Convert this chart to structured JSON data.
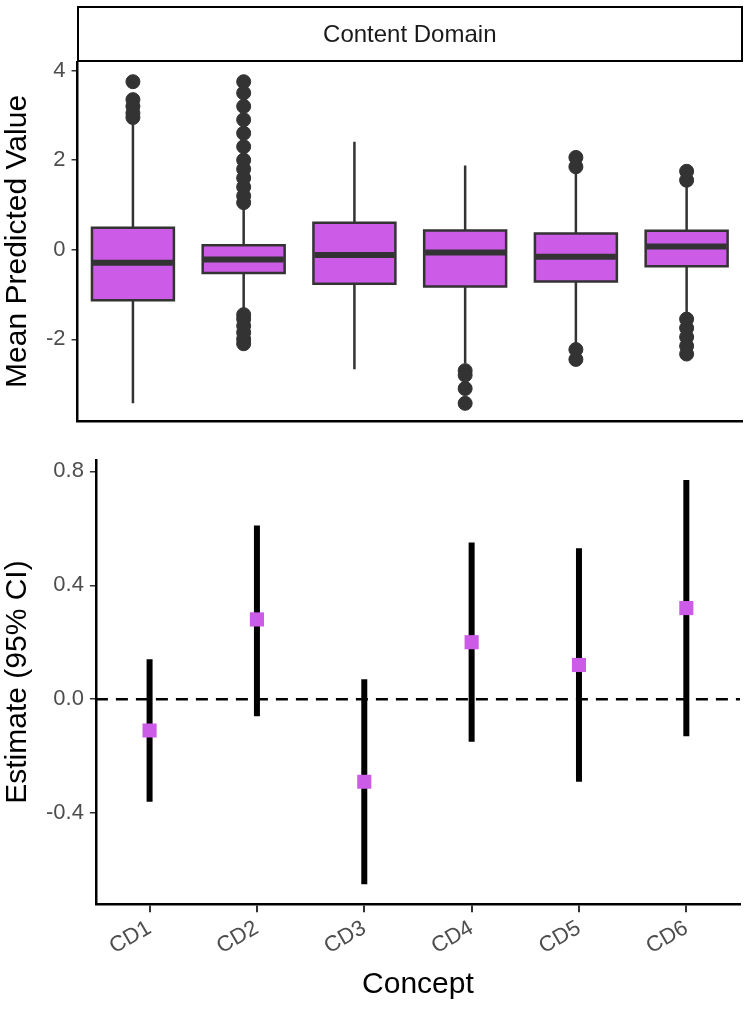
{
  "chart_data": [
    {
      "type": "box",
      "title": "Content Domain",
      "ylabel": "Mean Predicted Value",
      "categories": [
        null,
        null,
        null,
        null,
        null,
        null
      ],
      "color": "#cc5ce8",
      "boxes": [
        {
          "low": -3.43,
          "q1": -1.13,
          "median": -0.29,
          "q3": 0.49,
          "high": 2.8,
          "outliers": [
            2.95,
            3.05,
            3.2,
            3.35,
            3.75
          ]
        },
        {
          "low": -1.39,
          "q1": -0.52,
          "median": -0.22,
          "q3": 0.1,
          "high": 0.91,
          "outliers": [
            1.05,
            1.2,
            1.4,
            1.6,
            1.8,
            2.0,
            2.3,
            2.6,
            2.9,
            3.2,
            3.5,
            3.75,
            -1.45,
            -1.55,
            -1.7,
            -1.85,
            -2.0,
            -2.1
          ]
        },
        {
          "low": -2.67,
          "q1": -0.76,
          "median": -0.12,
          "q3": 0.6,
          "high": 2.41
        },
        {
          "low": -2.54,
          "q1": -0.82,
          "median": -0.06,
          "q3": 0.43,
          "high": 1.88,
          "outliers": [
            -2.7,
            -2.8,
            -3.1,
            -3.43
          ]
        },
        {
          "low": -2.13,
          "q1": -0.71,
          "median": -0.16,
          "q3": 0.36,
          "high": 1.75,
          "outliers": [
            1.85,
            2.06,
            -2.23,
            -2.45
          ]
        },
        {
          "low": -1.45,
          "q1": -0.37,
          "median": 0.07,
          "q3": 0.42,
          "high": 1.43,
          "outliers": [
            1.55,
            1.75,
            -1.55,
            -1.75,
            -1.95,
            -2.15,
            -2.33
          ]
        }
      ],
      "ylim": [
        -3.82,
        4.19
      ],
      "yticks": [
        -2,
        0,
        2,
        4
      ],
      "tick_labels": "y"
    },
    {
      "type": "scatter",
      "xlabel": "Concept",
      "ylabel": "Estimate (95% CI)",
      "categories": [
        "CD1",
        "CD2",
        "CD3",
        "CD4",
        "CD5",
        "CD6"
      ],
      "color": "#cc5ce8",
      "marker": "square",
      "values": [
        -0.11,
        0.28,
        -0.29,
        0.2,
        0.12,
        0.32
      ],
      "errors": [
        [
          -0.36,
          0.14
        ],
        [
          -0.06,
          0.61
        ],
        [
          -0.65,
          0.07
        ],
        [
          -0.15,
          0.55
        ],
        [
          -0.29,
          0.53
        ],
        [
          -0.13,
          0.77
        ]
      ],
      "ylim": [
        -0.72,
        0.84
      ],
      "yticks": [
        -0.4,
        {
          "value": 0,
          "label": "0.0"
        },
        0.4,
        0.8
      ],
      "ref_lines": [
        {
          "axis": "y",
          "value": 0,
          "line_style": "dashed",
          "color": "#000000"
        }
      ]
    }
  ]
}
